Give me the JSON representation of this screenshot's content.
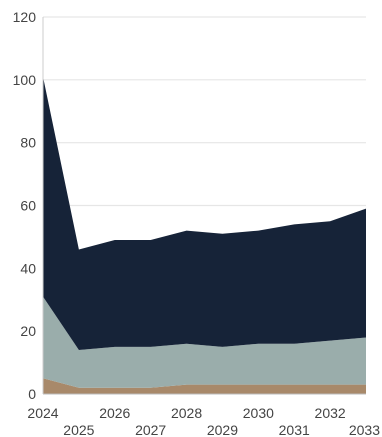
{
  "chart_data": {
    "type": "area",
    "stacked": true,
    "title": "",
    "xlabel": "",
    "ylabel": "",
    "x": [
      2024,
      2025,
      2026,
      2027,
      2028,
      2029,
      2030,
      2031,
      2032,
      2033
    ],
    "x_tick_labels_row1": [
      "2024",
      "2026",
      "2028",
      "2030",
      "2032"
    ],
    "x_tick_labels_row2": [
      "2025",
      "2027",
      "2029",
      "2031",
      "2033"
    ],
    "ylim": [
      0,
      120
    ],
    "y_ticks": [
      "0",
      "20",
      "40",
      "60",
      "80",
      "100",
      "120"
    ],
    "grid": true,
    "legend": "none",
    "series": [
      {
        "color": "#a8896a",
        "values": [
          5,
          2,
          2,
          2,
          3,
          3,
          3,
          3,
          3,
          3
        ]
      },
      {
        "color": "#9aadab",
        "values": [
          26,
          12,
          13,
          13,
          13,
          12,
          13,
          13,
          14,
          15
        ]
      },
      {
        "color": "#162338",
        "values": [
          70,
          32,
          34,
          34,
          36,
          36,
          36,
          38,
          38,
          41
        ]
      }
    ]
  }
}
